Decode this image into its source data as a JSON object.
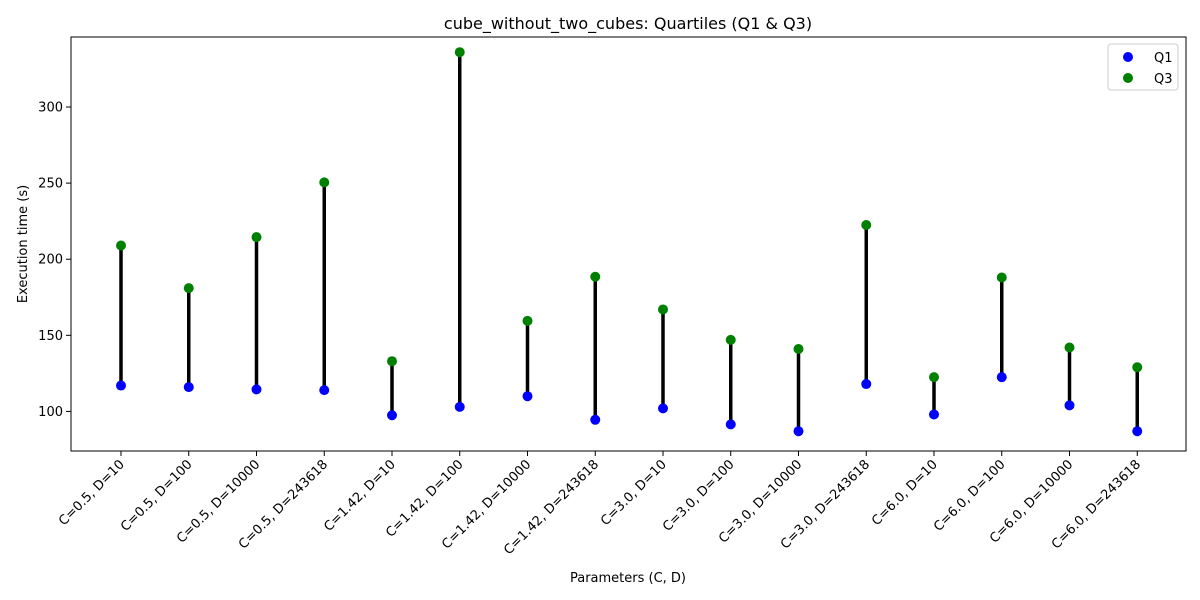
{
  "chart_data": {
    "type": "scatter",
    "title": "cube_without_two_cubes: Quartiles (Q1 & Q3)",
    "xlabel": "Parameters (C, D)",
    "ylabel": "Execution time (s)",
    "ylim": [
      74,
      346
    ],
    "yticks": [
      100,
      150,
      200,
      250,
      300
    ],
    "grid": false,
    "legend_position": "top-right",
    "categories": [
      "C=0.5, D=10",
      "C=0.5, D=100",
      "C=0.5, D=10000",
      "C=0.5, D=243618",
      "C=1.42, D=10",
      "C=1.42, D=100",
      "C=1.42, D=10000",
      "C=1.42, D=243618",
      "C=3.0, D=10",
      "C=3.0, D=100",
      "C=3.0, D=10000",
      "C=3.0, D=243618",
      "C=6.0, D=10",
      "C=6.0, D=100",
      "C=6.0, D=10000",
      "C=6.0, D=243618"
    ],
    "series": [
      {
        "name": "Q1",
        "color": "#0000ff",
        "values": [
          117,
          116,
          114.5,
          114,
          97.5,
          103,
          110,
          94.5,
          102,
          91.5,
          87,
          118,
          98,
          122.5,
          104,
          87
        ]
      },
      {
        "name": "Q3",
        "color": "#008000",
        "values": [
          209,
          181,
          214.5,
          250.5,
          133,
          336,
          159.5,
          188.5,
          167,
          147,
          141,
          222.5,
          122.5,
          188,
          142,
          129
        ]
      }
    ],
    "range_line_color": "#000000"
  }
}
